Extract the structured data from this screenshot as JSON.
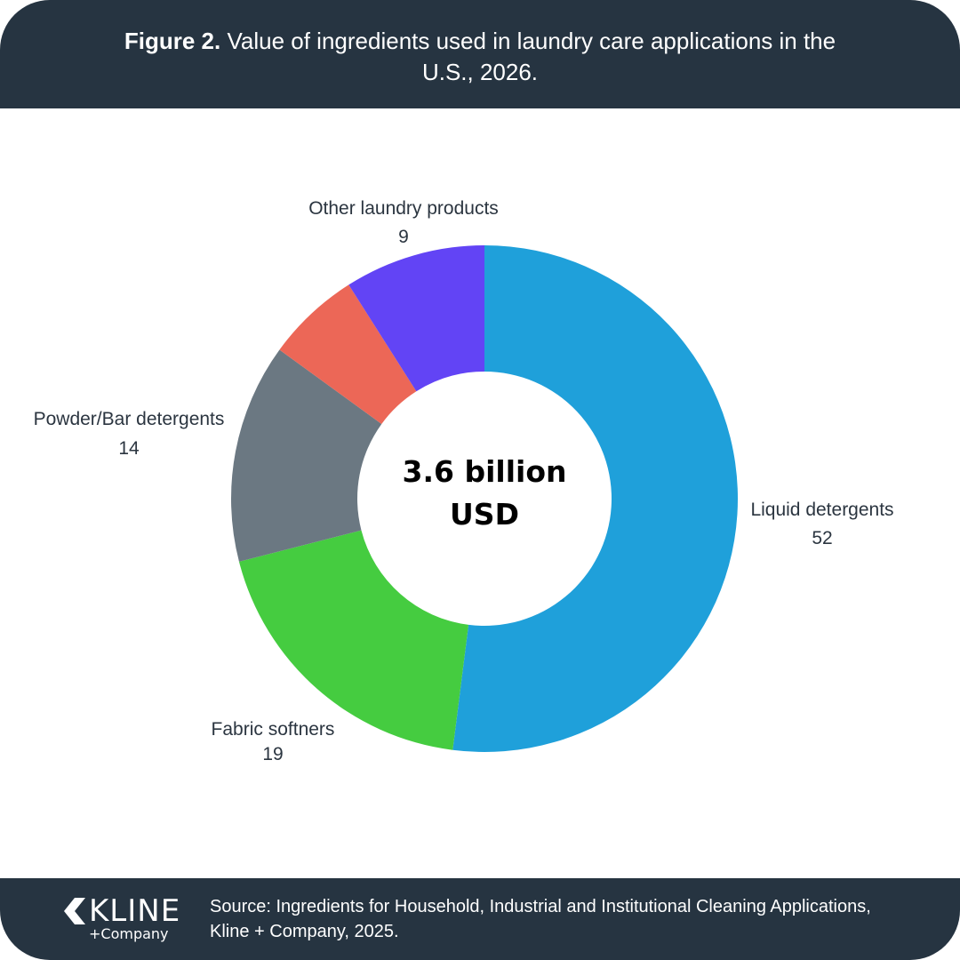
{
  "figure": {
    "number_label": "Figure 2.",
    "title": "Value of ingredients used in laundry care applications in the U.S., 2026."
  },
  "chart_data": {
    "type": "pie",
    "donut": true,
    "title": "Value of ingredients used in laundry care applications in the U.S., 2026.",
    "center_label_line1": "3.6 billion",
    "center_label_line2": "USD",
    "categories": [
      "Liquid detergents",
      "Fabric softners",
      "Powder/Bar detergents",
      "",
      "Other laundry products"
    ],
    "values": [
      52,
      19,
      14,
      6,
      9
    ],
    "value_labels": [
      "52",
      "19",
      "14",
      "",
      "9"
    ],
    "colors": [
      "#1fa0da",
      "#45cc40",
      "#6b7882",
      "#ec6757",
      "#6244f5"
    ],
    "legend": "none"
  },
  "footer": {
    "logo_word": "KLINE",
    "logo_sub": "+Company",
    "source_line1": "Source: Ingredients for Household, Industrial and Institutional Cleaning Applications,",
    "source_line2": "Kline + Company, 2025."
  }
}
